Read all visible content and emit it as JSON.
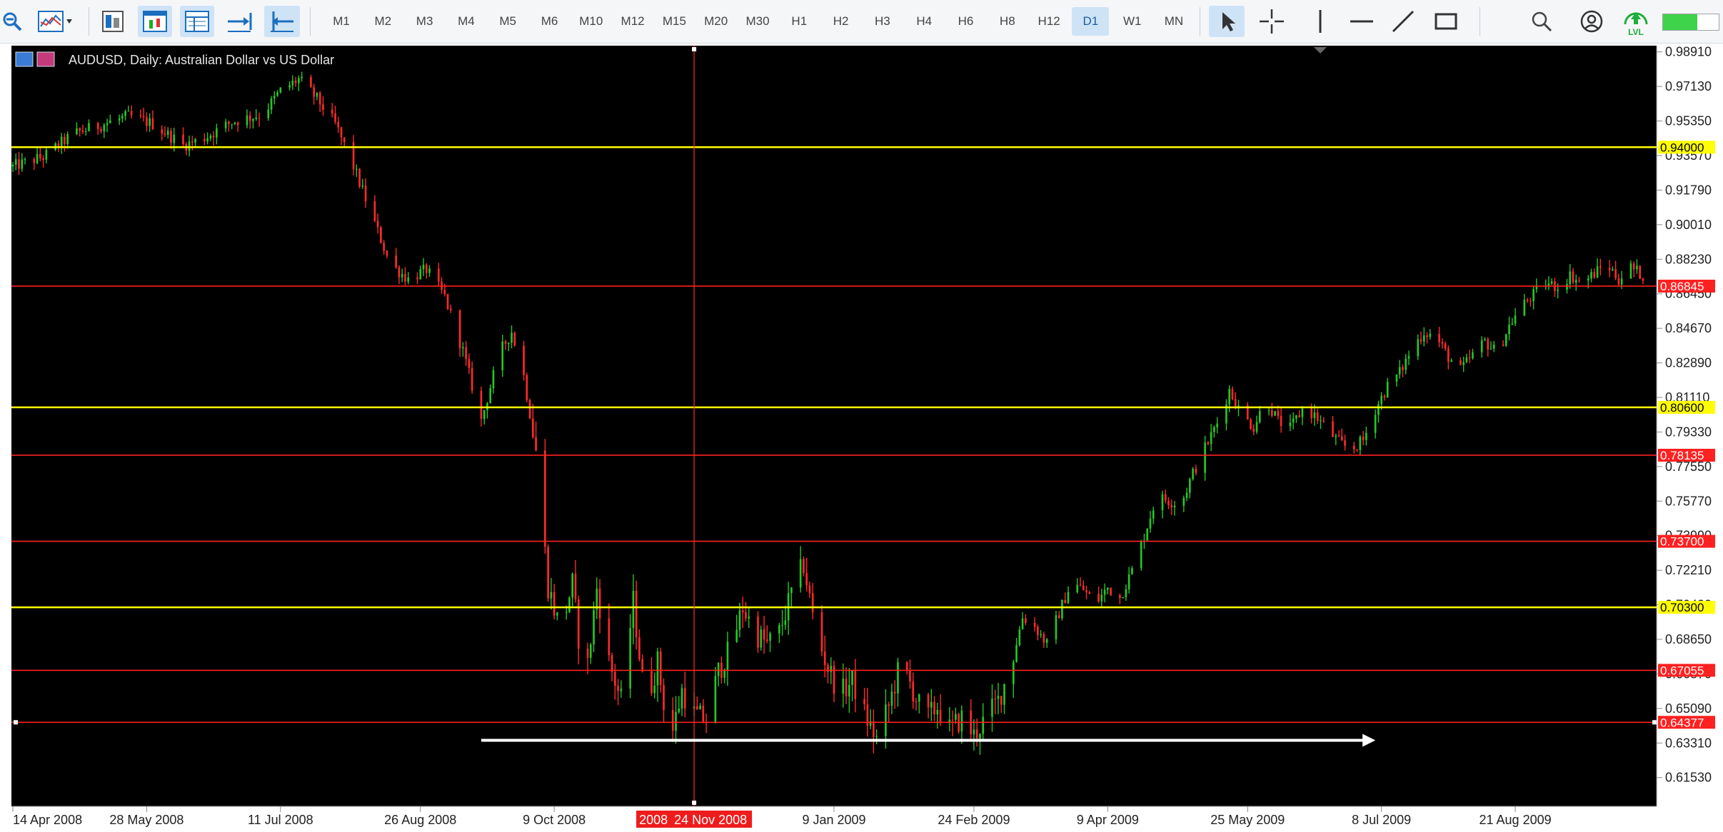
{
  "toolbar": {
    "timeframes": [
      "M1",
      "M2",
      "M3",
      "M4",
      "M5",
      "M6",
      "M10",
      "M12",
      "M15",
      "M20",
      "M30",
      "H1",
      "H2",
      "H3",
      "H4",
      "H6",
      "H8",
      "H12",
      "D1",
      "W1",
      "MN"
    ],
    "active_timeframe": "D1",
    "lvl_label": "LVL",
    "progress_fraction": 0.62
  },
  "chart_data": {
    "type": "candlestick",
    "title": "AUDUSD, Daily:  Australian Dollar vs US Dollar",
    "y_ticks": [
      "0.98910",
      "0.97130",
      "0.95350",
      "0.93570",
      "0.91790",
      "0.90010",
      "0.88230",
      "0.86450",
      "0.84670",
      "0.82890",
      "0.81110",
      "0.79330",
      "0.77550",
      "0.75770",
      "0.73990",
      "0.72210",
      "0.70430",
      "0.68650",
      "0.66870",
      "0.65090",
      "0.63310",
      "0.61530"
    ],
    "ylim": [
      0.6016,
      0.9912
    ],
    "x_ticks": [
      {
        "label": "14 Apr 2008",
        "day": 0
      },
      {
        "label": "28 May 2008",
        "day": 44
      },
      {
        "label": "11 Jul 2008",
        "day": 88
      },
      {
        "label": "26 Aug 2008",
        "day": 134
      },
      {
        "label": "9 Oct 2008",
        "day": 178
      },
      {
        "label": "9 Jan 2009",
        "day": 270
      },
      {
        "label": "24 Feb 2009",
        "day": 316
      },
      {
        "label": "9 Apr 2009",
        "day": 360
      },
      {
        "label": "25 May 2009",
        "day": 406
      },
      {
        "label": "8 Jul 2009",
        "day": 450
      },
      {
        "label": "21 Aug 2009",
        "day": 494
      }
    ],
    "x_range_days": [
      0,
      540
    ],
    "crosshair_time_label": "2008",
    "crosshair_date_label": "24 Nov 2008",
    "crosshair_day": 224,
    "levels": [
      {
        "price": 0.94,
        "label": "0.94000",
        "color": "#ffff00"
      },
      {
        "price": 0.806,
        "label": "0.80600",
        "color": "#ffff00"
      },
      {
        "price": 0.703,
        "label": "0.70300",
        "color": "#ffff00"
      },
      {
        "price": 0.86845,
        "label": "0.86845",
        "color": "#ff2020"
      },
      {
        "price": 0.78135,
        "label": "0.78135",
        "color": "#ff2020"
      },
      {
        "price": 0.737,
        "label": "0.73700",
        "color": "#ff2020"
      },
      {
        "price": 0.67055,
        "label": "0.67055",
        "color": "#ff2020"
      },
      {
        "price": 0.64377,
        "label": "0.64377",
        "color": "#ff2020"
      }
    ],
    "arrow": {
      "from_day": 154,
      "to_day": 448,
      "price": 0.6345
    },
    "path_points": [
      [
        0,
        0.93
      ],
      [
        10,
        0.935
      ],
      [
        20,
        0.947
      ],
      [
        28,
        0.951
      ],
      [
        38,
        0.956
      ],
      [
        46,
        0.952
      ],
      [
        56,
        0.941
      ],
      [
        62,
        0.944
      ],
      [
        72,
        0.953
      ],
      [
        82,
        0.957
      ],
      [
        88,
        0.969
      ],
      [
        94,
        0.975
      ],
      [
        100,
        0.965
      ],
      [
        106,
        0.952
      ],
      [
        112,
        0.93
      ],
      [
        118,
        0.905
      ],
      [
        124,
        0.88
      ],
      [
        130,
        0.872
      ],
      [
        136,
        0.877
      ],
      [
        142,
        0.863
      ],
      [
        148,
        0.835
      ],
      [
        154,
        0.799
      ],
      [
        160,
        0.834
      ],
      [
        164,
        0.845
      ],
      [
        168,
        0.822
      ],
      [
        172,
        0.784
      ],
      [
        176,
        0.714
      ],
      [
        180,
        0.691
      ],
      [
        184,
        0.715
      ],
      [
        188,
        0.66
      ],
      [
        192,
        0.713
      ],
      [
        196,
        0.675
      ],
      [
        200,
        0.655
      ],
      [
        204,
        0.706
      ],
      [
        208,
        0.652
      ],
      [
        212,
        0.675
      ],
      [
        216,
        0.633
      ],
      [
        220,
        0.66
      ],
      [
        224,
        0.648
      ],
      [
        228,
        0.645
      ],
      [
        232,
        0.67
      ],
      [
        236,
        0.682
      ],
      [
        240,
        0.703
      ],
      [
        244,
        0.69
      ],
      [
        248,
        0.684
      ],
      [
        252,
        0.69
      ],
      [
        256,
        0.71
      ],
      [
        260,
        0.725
      ],
      [
        264,
        0.69
      ],
      [
        268,
        0.672
      ],
      [
        272,
        0.658
      ],
      [
        276,
        0.665
      ],
      [
        280,
        0.648
      ],
      [
        284,
        0.635
      ],
      [
        288,
        0.652
      ],
      [
        292,
        0.675
      ],
      [
        296,
        0.66
      ],
      [
        300,
        0.645
      ],
      [
        304,
        0.652
      ],
      [
        308,
        0.64
      ],
      [
        312,
        0.646
      ],
      [
        316,
        0.637
      ],
      [
        320,
        0.646
      ],
      [
        324,
        0.655
      ],
      [
        328,
        0.672
      ],
      [
        332,
        0.698
      ],
      [
        336,
        0.693
      ],
      [
        340,
        0.684
      ],
      [
        344,
        0.7
      ],
      [
        348,
        0.716
      ],
      [
        352,
        0.712
      ],
      [
        356,
        0.705
      ],
      [
        360,
        0.713
      ],
      [
        364,
        0.708
      ],
      [
        368,
        0.722
      ],
      [
        372,
        0.74
      ],
      [
        376,
        0.76
      ],
      [
        380,
        0.758
      ],
      [
        384,
        0.756
      ],
      [
        388,
        0.772
      ],
      [
        392,
        0.785
      ],
      [
        396,
        0.798
      ],
      [
        400,
        0.815
      ],
      [
        404,
        0.802
      ],
      [
        408,
        0.796
      ],
      [
        412,
        0.81
      ],
      [
        416,
        0.799
      ],
      [
        420,
        0.795
      ],
      [
        424,
        0.805
      ],
      [
        428,
        0.802
      ],
      [
        432,
        0.795
      ],
      [
        436,
        0.788
      ],
      [
        440,
        0.784
      ],
      [
        444,
        0.789
      ],
      [
        448,
        0.805
      ],
      [
        452,
        0.817
      ],
      [
        456,
        0.824
      ],
      [
        460,
        0.836
      ],
      [
        464,
        0.845
      ],
      [
        468,
        0.842
      ],
      [
        472,
        0.832
      ],
      [
        476,
        0.825
      ],
      [
        480,
        0.833
      ],
      [
        484,
        0.84
      ],
      [
        488,
        0.834
      ],
      [
        492,
        0.848
      ],
      [
        496,
        0.858
      ],
      [
        500,
        0.864
      ],
      [
        504,
        0.87
      ],
      [
        508,
        0.868
      ],
      [
        512,
        0.874
      ],
      [
        516,
        0.87
      ],
      [
        520,
        0.875
      ],
      [
        524,
        0.88
      ],
      [
        528,
        0.872
      ],
      [
        532,
        0.878
      ],
      [
        536,
        0.874
      ]
    ]
  }
}
